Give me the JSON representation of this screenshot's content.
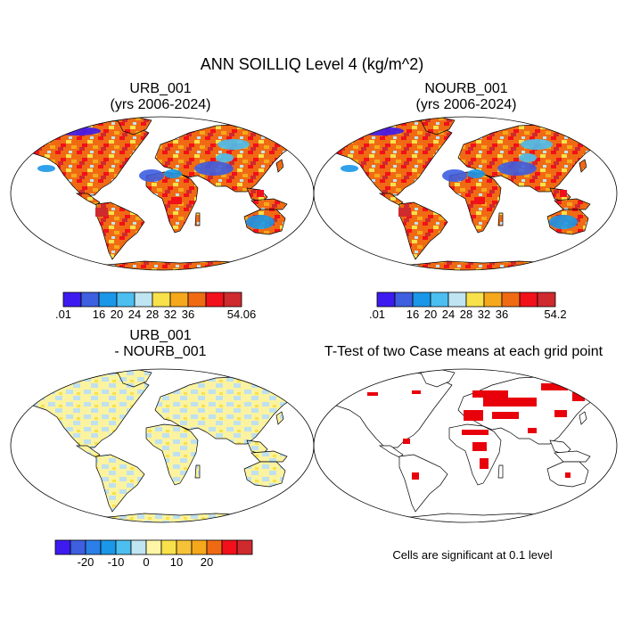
{
  "figure": {
    "title": "ANN SOILLIQ Level 4 (kg/m^2)"
  },
  "panels": [
    {
      "id": "urb",
      "title_line1": "URB_001",
      "title_line2": "(yrs 2006-2024)"
    },
    {
      "id": "nourb",
      "title_line1": "NOURB_001",
      "title_line2": "(yrs 2006-2024)"
    },
    {
      "id": "diff",
      "title_line1": "URB_001",
      "title_line2": "- NOURB_001"
    },
    {
      "id": "ttest",
      "title_line1": "T-Test of two Case means at each grid point",
      "title_line2": ""
    }
  ],
  "colorbars": {
    "field_left": {
      "colors": [
        "#3d1bf0",
        "#3d5fe0",
        "#1a97e8",
        "#4cbef0",
        "#bfe4f2",
        "#f8e14a",
        "#f6a81c",
        "#f06a14",
        "#f2101a",
        "#cf2a2e"
      ],
      "labels": [
        ".01",
        "16",
        "20",
        "24",
        "28",
        "32",
        "36",
        "54.06"
      ],
      "label_bounds": [
        0,
        2,
        3,
        4,
        5,
        6,
        7,
        10
      ]
    },
    "field_right": {
      "colors": [
        "#3d1bf0",
        "#3d5fe0",
        "#1a97e8",
        "#4cbef0",
        "#bfe4f2",
        "#f8e14a",
        "#f6a81c",
        "#f06a14",
        "#f2101a",
        "#cf2a2e"
      ],
      "labels": [
        ".01",
        "16",
        "20",
        "24",
        "28",
        "32",
        "36",
        "54.2"
      ],
      "label_bounds": [
        0,
        2,
        3,
        4,
        5,
        6,
        7,
        10
      ]
    },
    "difference": {
      "colors": [
        "#3d1bf0",
        "#3d5fe0",
        "#2a7fe8",
        "#1a97e8",
        "#4cbef0",
        "#bfe4f2",
        "#fef6a6",
        "#f8e14a",
        "#f6c238",
        "#f6a81c",
        "#f06a14",
        "#f2101a",
        "#cf2a2e"
      ],
      "labels": [
        "-20",
        "-10",
        "0",
        "10",
        "20"
      ],
      "label_bounds": [
        2,
        4,
        6,
        8,
        10
      ]
    }
  },
  "significance_note": "Cells are significant at 0.1 level",
  "colors": {
    "significant": "#e8000b",
    "diff_land": "#fbf3a0",
    "diff_negative": "#bfe0ee"
  }
}
